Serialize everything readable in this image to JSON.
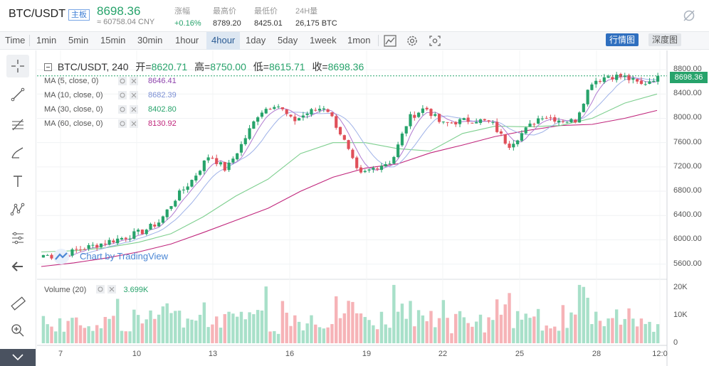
{
  "header": {
    "pair": "BTC/USDT",
    "tag": "主板",
    "price": "8698.36",
    "cny": "≈ 60758.04 CNY",
    "stats": [
      {
        "key": "涨幅",
        "value": "+0.16%",
        "up": true
      },
      {
        "key": "最高价",
        "value": "8789.20",
        "up": false
      },
      {
        "key": "最低价",
        "value": "8425.01",
        "up": false
      },
      {
        "key": "24H量",
        "value": "26,175 BTC",
        "up": false
      }
    ],
    "hide_icon": "eye-off-icon"
  },
  "toolbar": {
    "time_label": "Time",
    "intervals": [
      "1min",
      "5min",
      "15min",
      "30min",
      "1hour",
      "4hour",
      "1day",
      "5day",
      "1week",
      "1mon"
    ],
    "active_interval": "4hour",
    "icons": [
      "indicators-icon",
      "settings-icon",
      "screenshot-icon"
    ],
    "market_button": "行情图",
    "depth_button": "深度图"
  },
  "left_tools": [
    "crosshair-icon",
    "trend-line-icon",
    "fib-tool-icon",
    "brush-icon",
    "text-icon",
    "pattern-icon",
    "prediction-icon",
    "back-arrow-icon",
    "ruler-icon",
    "zoom-in-icon",
    "collapse-icon"
  ],
  "legend": {
    "title": "BTC/USDT, 240",
    "open_label": "开=",
    "open": "8620.71",
    "high_label": "高=",
    "high": "8750.00",
    "low_label": "低=",
    "low": "8615.71",
    "close_label": "收=",
    "close": "8698.36"
  },
  "moving_averages": [
    {
      "label": "MA (5, close, 0)",
      "value": "8646.41",
      "color": "#8e44ad"
    },
    {
      "label": "MA (10, close, 0)",
      "value": "8682.39",
      "color": "#7b8fd4"
    },
    {
      "label": "MA (30, close, 0)",
      "value": "8402.80",
      "color": "#27a36b"
    },
    {
      "label": "MA (60, close, 0)",
      "value": "8130.92",
      "color": "#c0267c"
    }
  ],
  "volume": {
    "label": "Volume (20)",
    "value": "3.699K"
  },
  "watermark": "Chart by TradingView",
  "price_badge": "8698.36",
  "chart_data": {
    "type": "candlestick",
    "title": "BTC/USDT, 240",
    "y_ticks": [
      "8800.00",
      "8400.00",
      "8000.00",
      "7600.00",
      "7200.00",
      "6800.00",
      "6400.00",
      "6000.00",
      "5600.00"
    ],
    "ylim": [
      5350,
      9000
    ],
    "volume_ticks": [
      "20K",
      "10K",
      "0"
    ],
    "volume_lim": [
      0,
      22000
    ],
    "x_ticks": [
      "7",
      "10",
      "13",
      "16",
      "19",
      "22",
      "25",
      "28",
      "12:0"
    ],
    "last_price": 8698.36,
    "ohlc_anchor_closes": [
      5750,
      5720,
      5830,
      5900,
      5980,
      6050,
      6140,
      6300,
      6700,
      7000,
      7400,
      7150,
      7600,
      8100,
      8250,
      7950,
      8100,
      8200,
      7700,
      7050,
      7200,
      7300,
      8000,
      8180,
      7900,
      7950,
      7980,
      7920,
      7550,
      7800,
      8050,
      7980,
      7950,
      8600,
      8700,
      8680,
      8550,
      8698
    ],
    "ma30_anchor": [
      5800,
      5820,
      5870,
      5960,
      6100,
      6380,
      6720,
      7000,
      7420,
      7600,
      7600,
      7500,
      7460,
      7750,
      7870,
      7860,
      7880,
      8000,
      8250,
      8400
    ],
    "ma60_anchor": [
      5560,
      5620,
      5700,
      5800,
      5930,
      6120,
      6320,
      6520,
      6800,
      7030,
      7180,
      7250,
      7430,
      7560,
      7700,
      7800,
      7880,
      7900,
      8000,
      8130
    ]
  }
}
